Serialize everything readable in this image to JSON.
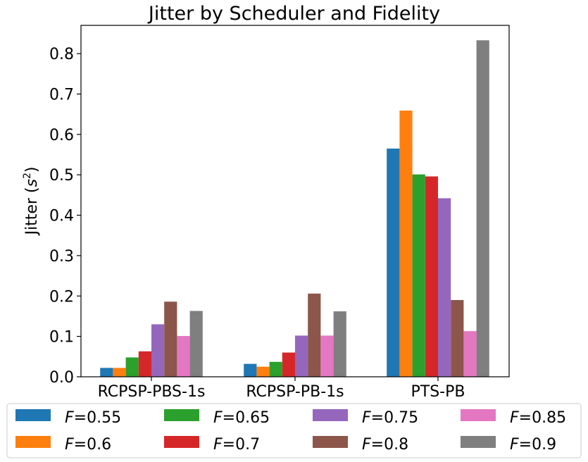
{
  "chart_data": {
    "type": "bar",
    "title": "Jitter by Scheduler and Fidelity",
    "xlabel": "",
    "ylabel": "Jitter (s²)",
    "ylabel_main": "Jitter (",
    "ylabel_var": "s",
    "ylabel_exp": "2",
    "ylabel_close": ")",
    "categories": [
      "RCPSP-PBS-1s",
      "RCPSP-PB-1s",
      "PTS-PB"
    ],
    "ylim": [
      0,
      0.87
    ],
    "yticks": [
      "0.0",
      "0.1",
      "0.2",
      "0.3",
      "0.4",
      "0.5",
      "0.6",
      "0.7",
      "0.8"
    ],
    "grid": false,
    "legend_placement": "bottom",
    "legend_prefix": "F",
    "series": [
      {
        "name": "F=0.55",
        "label_value": "=0.55",
        "color": "#1f77b4",
        "values": [
          0.022,
          0.032,
          0.565
        ]
      },
      {
        "name": "F=0.6",
        "label_value": "=0.6",
        "color": "#ff7f0e",
        "values": [
          0.022,
          0.025,
          0.659
        ]
      },
      {
        "name": "F=0.65",
        "label_value": "=0.65",
        "color": "#2ca02c",
        "values": [
          0.048,
          0.037,
          0.501
        ]
      },
      {
        "name": "F=0.7",
        "label_value": "=0.7",
        "color": "#d62728",
        "values": [
          0.063,
          0.06,
          0.496
        ]
      },
      {
        "name": "F=0.75",
        "label_value": "=0.75",
        "color": "#9467bd",
        "values": [
          0.13,
          0.102,
          0.442
        ]
      },
      {
        "name": "F=0.8",
        "label_value": "=0.8",
        "color": "#8c564b",
        "values": [
          0.186,
          0.206,
          0.19
        ]
      },
      {
        "name": "F=0.85",
        "label_value": "=0.85",
        "color": "#e377c2",
        "values": [
          0.101,
          0.102,
          0.113
        ]
      },
      {
        "name": "F=0.9",
        "label_value": "=0.9",
        "color": "#7f7f7f",
        "values": [
          0.163,
          0.162,
          0.833
        ]
      }
    ]
  }
}
